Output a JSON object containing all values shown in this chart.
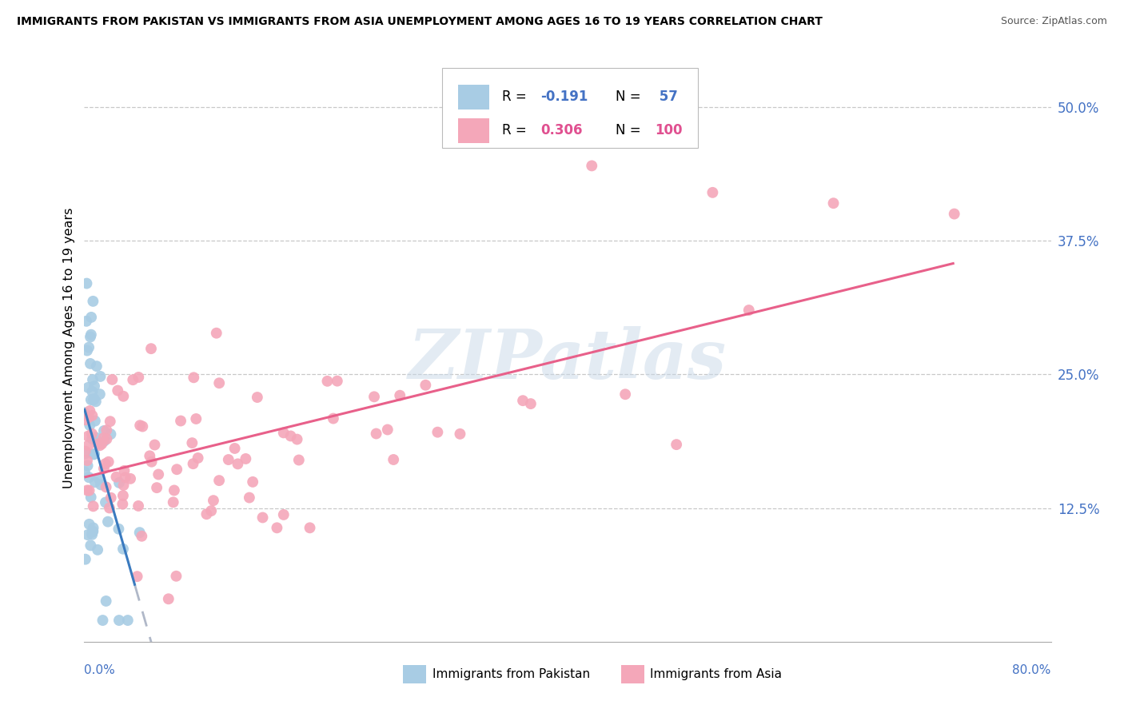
{
  "title": "IMMIGRANTS FROM PAKISTAN VS IMMIGRANTS FROM ASIA UNEMPLOYMENT AMONG AGES 16 TO 19 YEARS CORRELATION CHART",
  "source": "Source: ZipAtlas.com",
  "ylabel": "Unemployment Among Ages 16 to 19 years",
  "xmin": 0.0,
  "xmax": 0.8,
  "ymin": 0.0,
  "ymax": 0.55,
  "right_yticks": [
    0.125,
    0.25,
    0.375,
    0.5
  ],
  "right_yticklabels": [
    "12.5%",
    "25.0%",
    "37.5%",
    "50.0%"
  ],
  "blue_color": "#a8cce4",
  "pink_color": "#f4a7b9",
  "blue_line_color": "#3a7abf",
  "pink_line_color": "#e8608a",
  "watermark": "ZIPatlas",
  "blue_r": "-0.191",
  "blue_n": "57",
  "pink_r": "0.306",
  "pink_n": "100",
  "legend_r_color": "#4472c4",
  "legend_pink_r_color": "#e05090"
}
